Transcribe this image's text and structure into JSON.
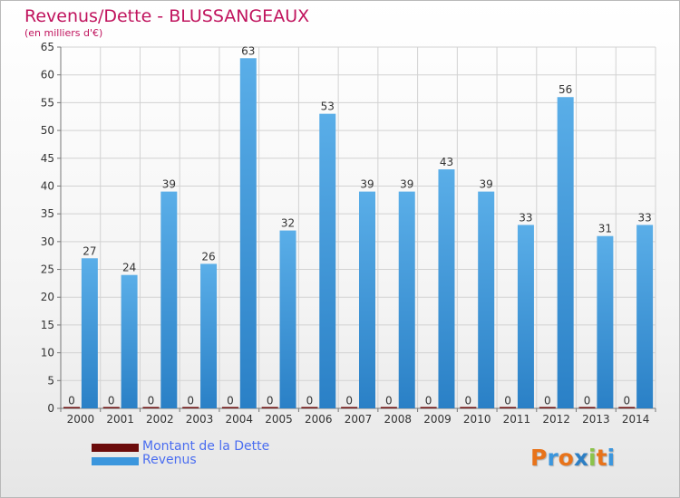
{
  "header": {
    "title": "Revenus/Dette - BLUSSANGEAUX",
    "subtitle": "(en milliers d'€)"
  },
  "colors": {
    "title": "#c0135d",
    "revenus": "#3b96dd",
    "dette": "#6b0b0b",
    "legend_text": "#4a6df0"
  },
  "legend": {
    "items": [
      {
        "label": "Montant de la Dette",
        "color": "#6b0b0b"
      },
      {
        "label": "Revenus",
        "color": "#3b96dd"
      }
    ]
  },
  "logo": {
    "text": "Proxiti",
    "letter_colors": [
      "#e8731a",
      "#3b96dd",
      "#e8731a",
      "#2d7fc4",
      "#8bc34a",
      "#e8731a",
      "#3b96dd"
    ]
  },
  "chart_data": {
    "type": "bar",
    "title": "Revenus/Dette - BLUSSANGEAUX",
    "subtitle": "(en milliers d'€)",
    "xlabel": "",
    "ylabel": "",
    "ylim": [
      0,
      65
    ],
    "yticks": [
      0,
      5,
      10,
      15,
      20,
      25,
      30,
      35,
      40,
      45,
      50,
      55,
      60,
      65
    ],
    "grid": true,
    "categories": [
      "2000",
      "2001",
      "2002",
      "2003",
      "2004",
      "2005",
      "2006",
      "2007",
      "2008",
      "2009",
      "2010",
      "2011",
      "2012",
      "2013",
      "2014"
    ],
    "series": [
      {
        "name": "Montant de la Dette",
        "values": [
          0,
          0,
          0,
          0,
          0,
          0,
          0,
          0,
          0,
          0,
          0,
          0,
          0,
          0,
          0
        ]
      },
      {
        "name": "Revenus",
        "values": [
          27,
          24,
          39,
          26,
          63,
          32,
          53,
          39,
          39,
          43,
          39,
          33,
          56,
          31,
          33
        ]
      }
    ]
  }
}
